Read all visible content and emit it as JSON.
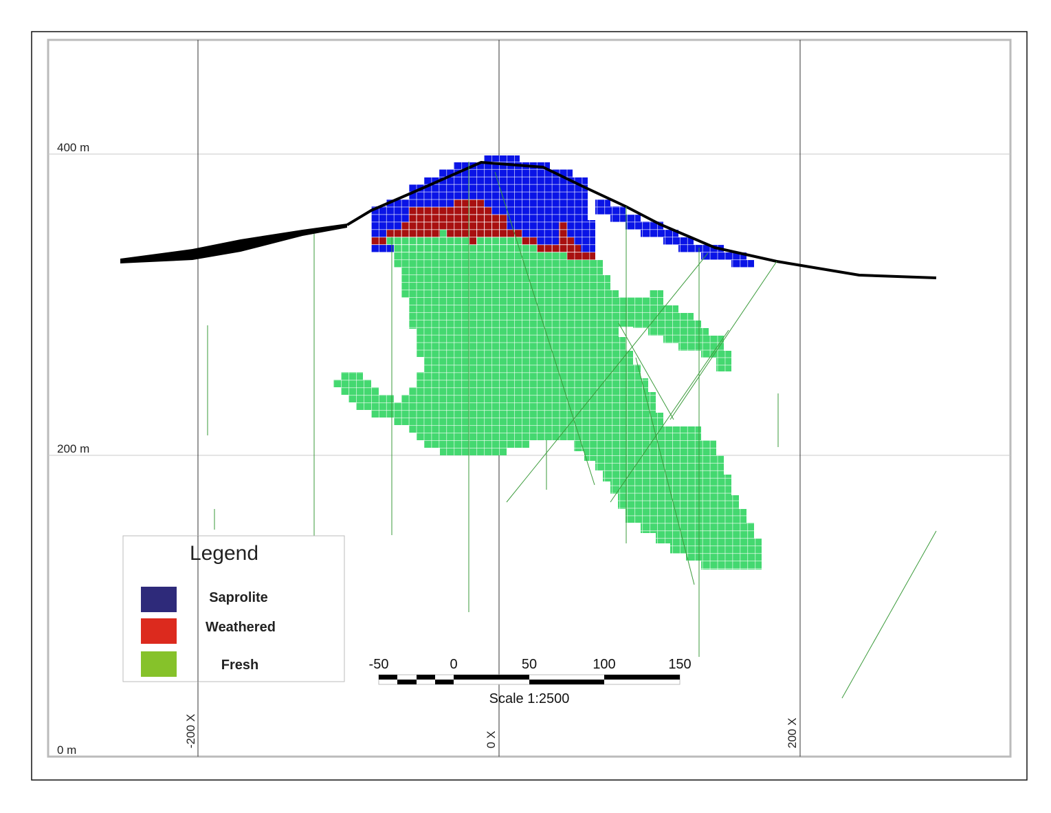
{
  "axes": {
    "y_labels": [
      "400 m",
      "200 m",
      "0 m"
    ],
    "x_labels": [
      "-200 X",
      "0 X",
      "200 X"
    ]
  },
  "legend": {
    "title": "Legend",
    "items": [
      {
        "label": "Saprolite",
        "color": "#2e2a7a"
      },
      {
        "label": "Weathered",
        "color": "#dc2a1e"
      },
      {
        "label": "Fresh",
        "color": "#86c22a"
      }
    ]
  },
  "model_colors": {
    "saprolite": "#0a14e6",
    "weathered": "#a81010",
    "fresh": "#44d870",
    "surface": "#000000",
    "drillholes": "#3a9a3a"
  },
  "scale_bar": {
    "ticks": [
      "-50",
      "0",
      "50",
      "100",
      "150"
    ],
    "label": "Scale 1:2500"
  }
}
